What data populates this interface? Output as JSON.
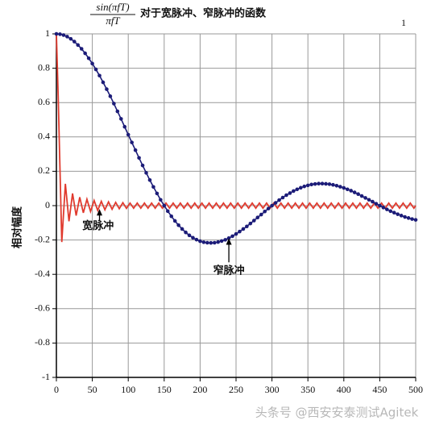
{
  "chart_data": {
    "type": "line",
    "title_fraction": {
      "numerator": "sin(πfT)",
      "denominator": "πfT"
    },
    "title": "对于宽脉冲、窄脉冲的函数",
    "page_number": "1",
    "y_label": "相对幅度",
    "annotations": [
      "宽脉冲",
      "窄脉冲"
    ],
    "watermark": "头条号 @西安安泰测试Agitek",
    "xlim": [
      0,
      500
    ],
    "xticks": [
      0,
      50,
      100,
      150,
      200,
      250,
      300,
      350,
      400,
      450,
      500
    ],
    "ylim": [
      -1,
      1
    ],
    "yticks": [
      -1,
      -0.8,
      -0.6,
      -0.4,
      -0.2,
      0,
      0.2,
      0.4,
      0.6,
      0.8,
      1
    ],
    "grid": true,
    "series": [
      {
        "color": "#e03a2e",
        "markers": false,
        "x": [
          0,
          2.5,
          7.5,
          12.5,
          17.5,
          22.5,
          27.5,
          32.5,
          37.5,
          42.5,
          47.5,
          52.5,
          57.5,
          62.5,
          67.5,
          72.5,
          77.5,
          82.5,
          87.5,
          92.5,
          97.5,
          102.5,
          107.5,
          112.5,
          117.5,
          122.5,
          127.5,
          132.5,
          137.5,
          142.5,
          147.5,
          152.5,
          157.5,
          162.5,
          167.5,
          172.5,
          177.5,
          182.5,
          187.5,
          192.5,
          197.5,
          202.5,
          207.5,
          212.5,
          217.5,
          222.5,
          227.5,
          232.5,
          237.5,
          242.5,
          247.5,
          252.5,
          257.5,
          262.5,
          267.5,
          272.5,
          277.5,
          282.5,
          287.5,
          292.5,
          297.5,
          302.5,
          307.5,
          312.5,
          317.5,
          322.5,
          327.5,
          332.5,
          337.5,
          342.5,
          347.5,
          352.5,
          357.5,
          362.5,
          367.5,
          372.5,
          377.5,
          382.5,
          387.5,
          392.5,
          397.5,
          402.5,
          407.5,
          412.5,
          417.5,
          422.5,
          427.5,
          432.5,
          437.5,
          442.5,
          447.5,
          452.5,
          457.5,
          462.5,
          467.5,
          472.5,
          477.5,
          482.5,
          487.5,
          492.5,
          497.5,
          500
        ],
        "values": [
          1,
          0.637,
          -0.212,
          0.127,
          -0.091,
          0.071,
          -0.058,
          0.049,
          -0.042,
          0.037,
          -0.034,
          0.03,
          -0.028,
          0.025,
          -0.024,
          0.022,
          -0.021,
          0.019,
          -0.018,
          0.017,
          -0.016,
          0.015,
          -0.015,
          0.015,
          -0.015,
          0.015,
          -0.015,
          0.015,
          -0.015,
          0.015,
          -0.015,
          0.015,
          -0.015,
          0.015,
          -0.015,
          0.015,
          -0.015,
          0.015,
          -0.015,
          0.015,
          -0.015,
          0.015,
          -0.015,
          0.015,
          -0.015,
          0.015,
          -0.015,
          0.015,
          -0.015,
          0.015,
          -0.015,
          0.015,
          -0.015,
          0.015,
          -0.015,
          0.015,
          -0.015,
          0.015,
          -0.015,
          0.015,
          -0.015,
          0.015,
          -0.015,
          0.015,
          -0.015,
          0.015,
          -0.015,
          0.015,
          -0.015,
          0.015,
          -0.015,
          0.015,
          -0.015,
          0.015,
          -0.015,
          0.015,
          -0.015,
          0.015,
          -0.015,
          0.015,
          -0.015,
          0.015,
          -0.015,
          0.015,
          -0.015,
          0.015,
          -0.015,
          0.015,
          -0.015,
          0.015,
          -0.015,
          0.015,
          -0.015,
          0.015,
          -0.015,
          0.015,
          -0.015,
          0.015,
          -0.015,
          0.015,
          -0.015,
          0
        ]
      },
      {
        "color": "#1c1c78",
        "markers": true,
        "x": [
          0,
          5,
          10,
          15,
          20,
          25,
          30,
          35,
          40,
          45,
          50,
          55,
          60,
          65,
          70,
          75,
          80,
          85,
          90,
          95,
          100,
          105,
          110,
          115,
          120,
          125,
          130,
          135,
          140,
          145,
          150,
          155,
          160,
          165,
          170,
          175,
          180,
          185,
          190,
          195,
          200,
          205,
          210,
          215,
          220,
          225,
          230,
          235,
          240,
          245,
          250,
          255,
          260,
          265,
          270,
          275,
          280,
          285,
          290,
          295,
          300,
          305,
          310,
          315,
          320,
          325,
          330,
          335,
          340,
          345,
          350,
          355,
          360,
          365,
          370,
          375,
          380,
          385,
          390,
          395,
          400,
          405,
          410,
          415,
          420,
          425,
          430,
          435,
          440,
          445,
          450,
          455,
          460,
          465,
          470,
          475,
          480,
          485,
          490,
          495,
          500
        ],
        "values": [
          1,
          0.998,
          0.993,
          0.984,
          0.971,
          0.955,
          0.935,
          0.913,
          0.887,
          0.858,
          0.827,
          0.793,
          0.757,
          0.718,
          0.678,
          0.637,
          0.594,
          0.549,
          0.505,
          0.459,
          0.413,
          0.368,
          0.323,
          0.278,
          0.234,
          0.191,
          0.149,
          0.109,
          0.071,
          0.034,
          0,
          -0.032,
          -0.062,
          -0.089,
          -0.114,
          -0.136,
          -0.156,
          -0.173,
          -0.187,
          -0.198,
          -0.207,
          -0.213,
          -0.216,
          -0.217,
          -0.216,
          -0.212,
          -0.206,
          -0.199,
          -0.189,
          -0.178,
          -0.165,
          -0.151,
          -0.136,
          -0.121,
          -0.104,
          -0.087,
          -0.069,
          -0.052,
          -0.034,
          -0.017,
          0,
          0.016,
          0.032,
          0.047,
          0.061,
          0.073,
          0.085,
          0.095,
          0.104,
          0.112,
          0.118,
          0.123,
          0.126,
          0.128,
          0.128,
          0.127,
          0.125,
          0.121,
          0.116,
          0.11,
          0.103,
          0.095,
          0.087,
          0.077,
          0.067,
          0.056,
          0.045,
          0.034,
          0.023,
          0.011,
          0,
          -0.011,
          -0.022,
          -0.032,
          -0.041,
          -0.05,
          -0.058,
          -0.066,
          -0.072,
          -0.078,
          -0.083
        ]
      }
    ]
  }
}
